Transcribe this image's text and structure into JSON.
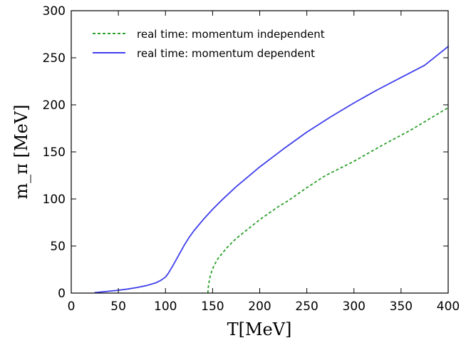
{
  "chart_data": {
    "type": "line",
    "xlabel": "T[MeV]",
    "ylabel": "m_π [MeV]",
    "xlim": [
      0,
      400
    ],
    "ylim": [
      0,
      300
    ],
    "x_ticks": [
      0,
      50,
      100,
      150,
      200,
      250,
      300,
      350,
      400
    ],
    "y_ticks": [
      0,
      50,
      100,
      150,
      200,
      250,
      300
    ],
    "grid": false,
    "legend_position": "top-left",
    "series": [
      {
        "name": "real time: momentum independent",
        "color": "#2ca02c",
        "style": "dashed",
        "x": [
          145,
          145.3,
          145.8,
          146.5,
          147.5,
          149,
          151,
          153,
          156,
          160,
          165,
          170,
          175,
          180,
          190,
          200,
          210,
          220,
          230,
          250,
          270,
          300,
          330,
          360,
          400
        ],
        "y": [
          0,
          5,
          9,
          13,
          18,
          23,
          28,
          32,
          37,
          42,
          48,
          53,
          58,
          62,
          70,
          78,
          85,
          92,
          98,
          112,
          125,
          140,
          157,
          173,
          197
        ]
      },
      {
        "name": "real time: momentum dependent",
        "color": "#3f3fec",
        "style": "solid",
        "x": [
          25,
          30,
          40,
          50,
          60,
          70,
          80,
          90,
          95,
          100,
          103,
          106,
          110,
          115,
          120,
          125,
          130,
          140,
          150,
          160,
          175,
          200,
          225,
          250,
          275,
          300,
          325,
          350,
          375,
          400
        ],
        "y": [
          0.5,
          1,
          2,
          3,
          4.3,
          6,
          8,
          11,
          13.5,
          17,
          21,
          26,
          33,
          42,
          51,
          59,
          66,
          78,
          89,
          99,
          113,
          134,
          153,
          171,
          187,
          202,
          216,
          229,
          242,
          262
        ]
      }
    ]
  }
}
